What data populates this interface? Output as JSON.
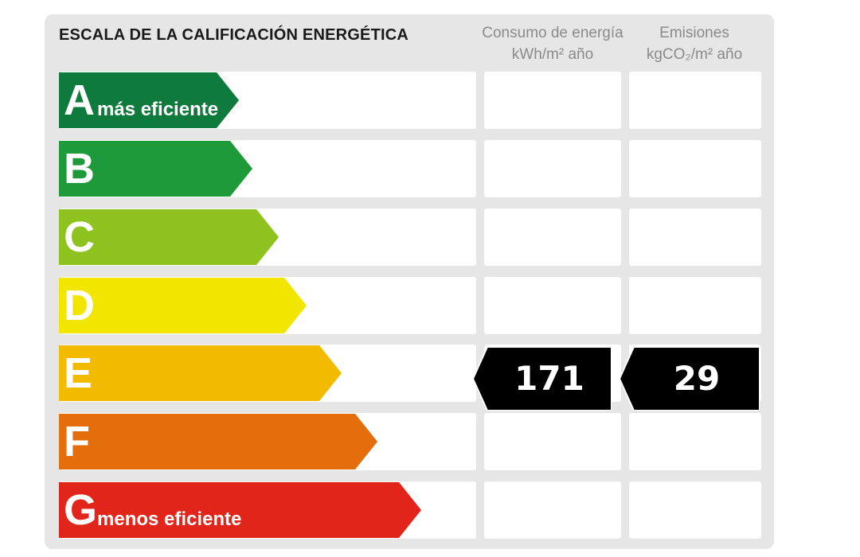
{
  "title": "ESCALA DE LA CALIFICACIÓN ENERGÉTICA",
  "columns": {
    "energy": {
      "line1": "Consumo de energía",
      "line2": "kWh/m² año"
    },
    "emissions": {
      "line1": "Emisiones",
      "line2": "kgCO₂/m² año"
    }
  },
  "ratings": [
    {
      "letter": "A",
      "sublabel": "más eficiente",
      "color": "#0e7a3c"
    },
    {
      "letter": "B",
      "sublabel": "",
      "color": "#1f9a3a"
    },
    {
      "letter": "C",
      "sublabel": "",
      "color": "#8dc21f"
    },
    {
      "letter": "D",
      "sublabel": "",
      "color": "#f2e600"
    },
    {
      "letter": "E",
      "sublabel": "",
      "color": "#f2bb00"
    },
    {
      "letter": "F",
      "sublabel": "",
      "color": "#e46e0c"
    },
    {
      "letter": "G",
      "sublabel": "menos eficiente",
      "color": "#e1251b"
    }
  ],
  "result": {
    "rating": "E",
    "energy_value": "171",
    "emissions_value": "29",
    "tag_color": "#000000"
  }
}
